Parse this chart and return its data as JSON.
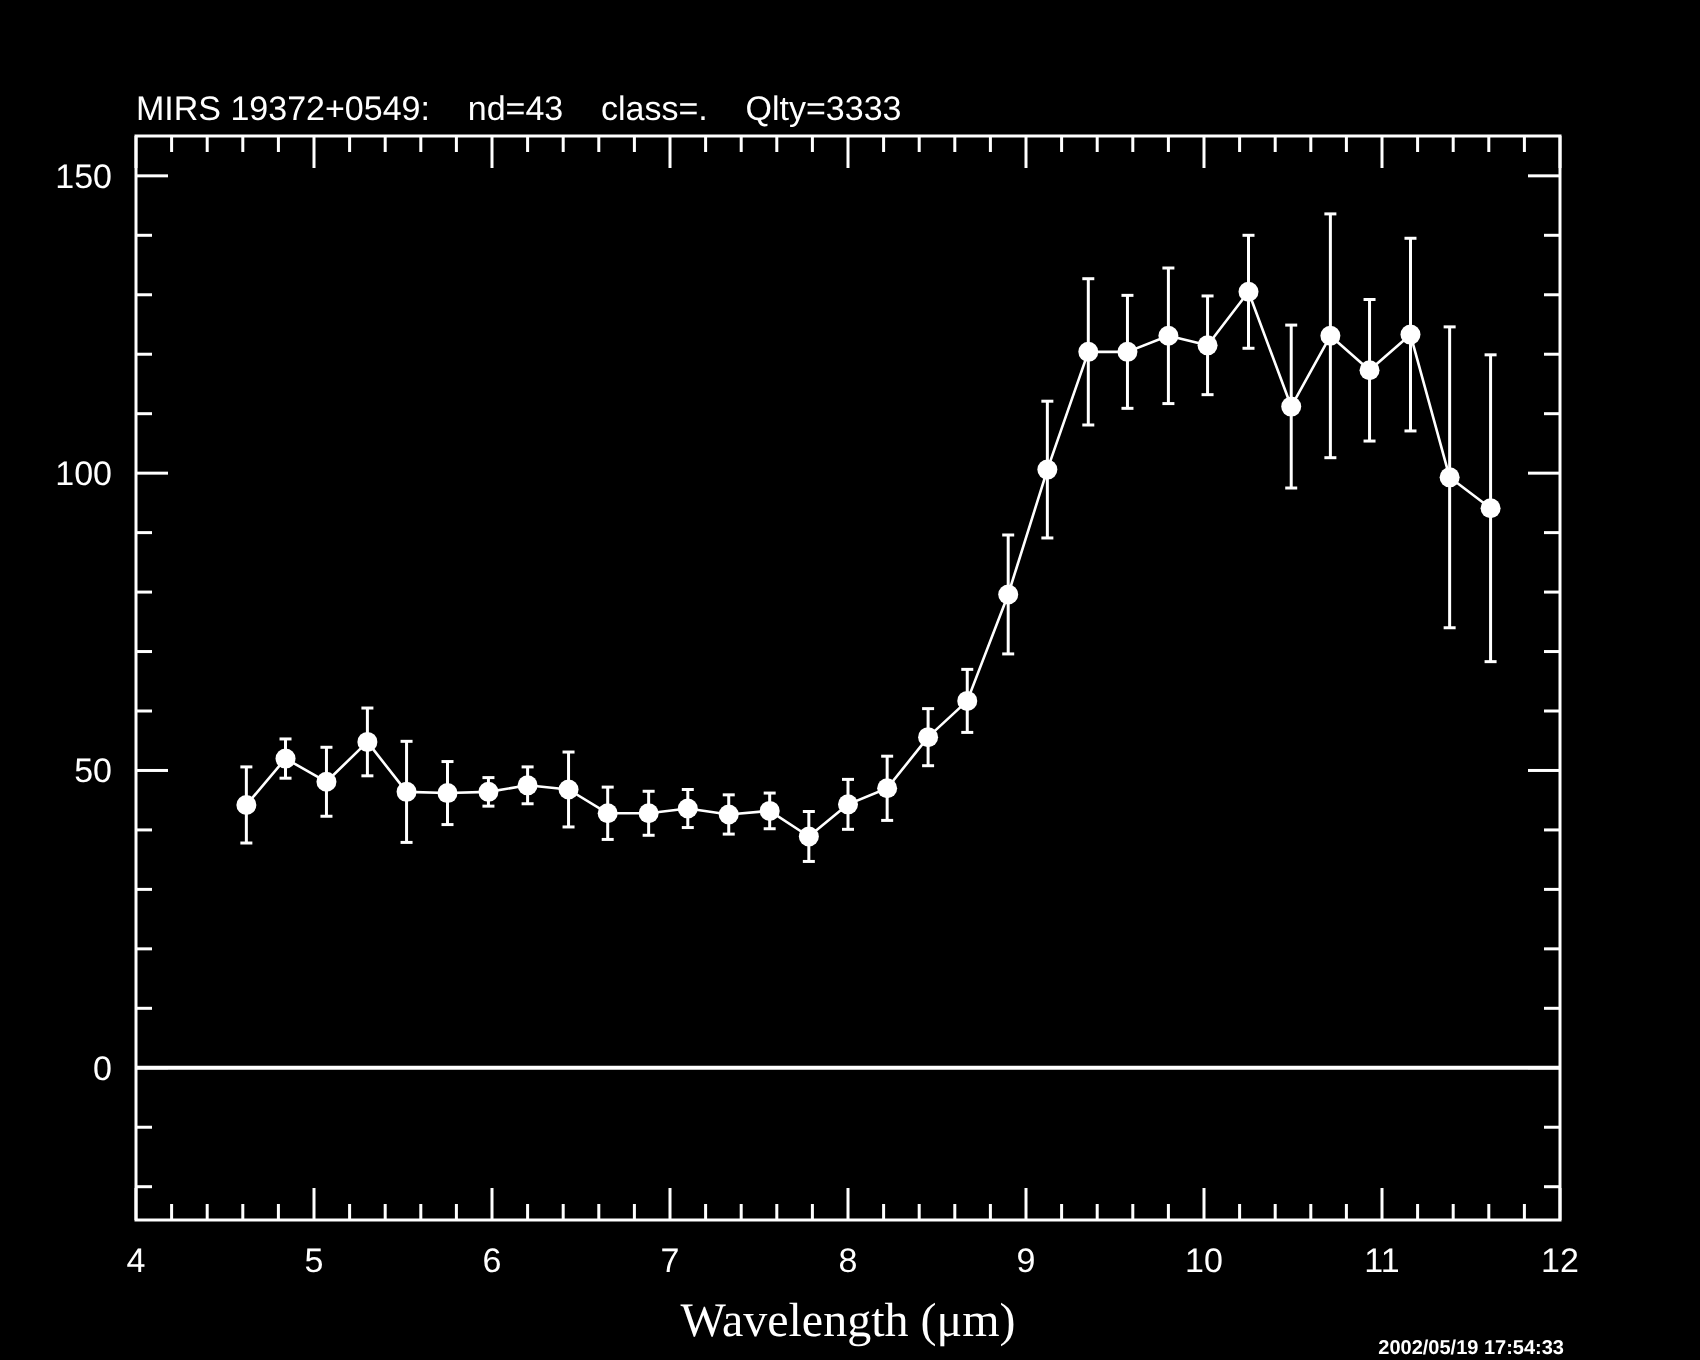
{
  "chart_data": {
    "type": "line",
    "title": "MIRS 19372+0549:    nd=43    class=.    Qlty=3333",
    "xlabel": "Wavelength (μm)",
    "annotations": [
      "2002/05/19 17:54:33"
    ],
    "x": [
      4.62,
      4.84,
      5.07,
      5.3,
      5.52,
      5.75,
      5.98,
      6.2,
      6.43,
      6.65,
      6.88,
      7.1,
      7.33,
      7.56,
      7.78,
      8.0,
      8.22,
      8.45,
      8.67,
      8.9,
      9.12,
      9.35,
      9.57,
      9.8,
      10.02,
      10.25,
      10.49,
      10.71,
      10.93,
      11.16,
      11.38,
      11.61
    ],
    "series": [
      {
        "color": "#ffffff",
        "values": [
          44.2,
          52.0,
          48.1,
          54.8,
          46.4,
          46.2,
          46.4,
          47.5,
          46.8,
          42.8,
          42.8,
          43.6,
          42.6,
          43.2,
          38.9,
          44.3,
          47.0,
          55.6,
          61.7,
          79.6,
          100.6,
          120.4,
          120.4,
          123.1,
          121.5,
          130.5,
          111.2,
          123.1,
          117.3,
          123.3,
          99.3,
          94.1
        ],
        "errors": [
          6.4,
          3.3,
          5.8,
          5.7,
          8.5,
          5.3,
          2.4,
          3.1,
          6.3,
          4.4,
          3.7,
          3.2,
          3.3,
          3.0,
          4.2,
          4.2,
          5.4,
          4.8,
          5.3,
          10,
          11.5,
          12.3,
          9.5,
          11.4,
          8.3,
          9.5,
          13.7,
          20.5,
          11.9,
          16.2,
          25.3,
          25.8
        ]
      }
    ],
    "marker": "circle",
    "line_style": "solid",
    "grid": false,
    "xlim": [
      4,
      12
    ],
    "ylim": [
      -25.6,
      156.7
    ],
    "xticks": [
      4,
      {
        "value": 4.2,
        "label": null
      },
      {
        "value": 4.4,
        "label": null
      },
      {
        "value": 4.6,
        "label": null
      },
      {
        "value": 4.8,
        "label": null
      },
      5,
      {
        "value": 5.2,
        "label": null
      },
      {
        "value": 5.4,
        "label": null
      },
      {
        "value": 5.6,
        "label": null
      },
      {
        "value": 5.8,
        "label": null
      },
      6,
      {
        "value": 6.2,
        "label": null
      },
      {
        "value": 6.4,
        "label": null
      },
      {
        "value": 6.6,
        "label": null
      },
      {
        "value": 6.8,
        "label": null
      },
      7,
      {
        "value": 7.2,
        "label": null
      },
      {
        "value": 7.4,
        "label": null
      },
      {
        "value": 7.6,
        "label": null
      },
      {
        "value": 7.8,
        "label": null
      },
      8,
      {
        "value": 8.2,
        "label": null
      },
      {
        "value": 8.4,
        "label": null
      },
      {
        "value": 8.6,
        "label": null
      },
      {
        "value": 8.8,
        "label": null
      },
      9,
      {
        "value": 9.2,
        "label": null
      },
      {
        "value": 9.4,
        "label": null
      },
      {
        "value": 9.6,
        "label": null
      },
      {
        "value": 9.8,
        "label": null
      },
      10,
      {
        "value": 10.2,
        "label": null
      },
      {
        "value": 10.4,
        "label": null
      },
      {
        "value": 10.6,
        "label": null
      },
      {
        "value": 10.8,
        "label": null
      },
      11,
      {
        "value": 11.2,
        "label": null
      },
      {
        "value": 11.4,
        "label": null
      },
      {
        "value": 11.6,
        "label": null
      },
      {
        "value": 11.8,
        "label": null
      },
      12
    ],
    "yticks": [
      {
        "value": -20,
        "label": null
      },
      {
        "value": -10,
        "label": null
      },
      0,
      {
        "value": 10,
        "label": null
      },
      {
        "value": 20,
        "label": null
      },
      {
        "value": 30,
        "label": null
      },
      {
        "value": 40,
        "label": null
      },
      50,
      {
        "value": 60,
        "label": null
      },
      {
        "value": 70,
        "label": null
      },
      {
        "value": 80,
        "label": null
      },
      {
        "value": 90,
        "label": null
      },
      100,
      {
        "value": 110,
        "label": null
      },
      {
        "value": 120,
        "label": null
      },
      {
        "value": 130,
        "label": null
      },
      {
        "value": 140,
        "label": null
      },
      150
    ],
    "ref_lines": [
      {
        "axis": "y",
        "value": 0,
        "color": "#ffffff",
        "line_style": "solid"
      }
    ]
  }
}
